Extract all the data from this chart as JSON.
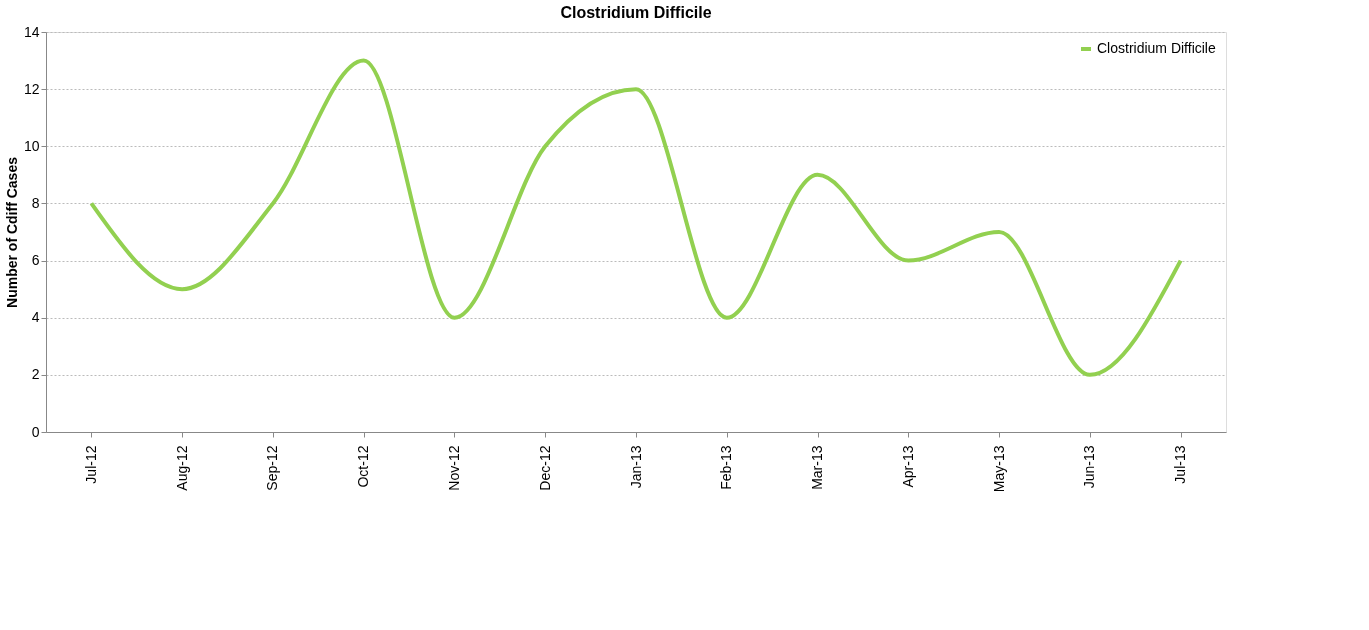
{
  "chart_data": {
    "type": "line",
    "title": "Clostridium Difficile",
    "ylabel": "Number of Cdiff Cases",
    "categories": [
      "Jul-12",
      "Aug-12",
      "Sep-12",
      "Oct-12",
      "Nov-12",
      "Dec-12",
      "Jan-13",
      "Feb-13",
      "Mar-13",
      "Apr-13",
      "May-13",
      "Jun-13",
      "Jul-13"
    ],
    "series": [
      {
        "name": "Clostridium Difficile",
        "color": "#92d050",
        "values": [
          8,
          5,
          8,
          13,
          4,
          10,
          12,
          4,
          9,
          6,
          7,
          2,
          6
        ]
      }
    ],
    "ylim": [
      0,
      14
    ],
    "yticks": [
      0,
      2,
      4,
      6,
      8,
      10,
      12,
      14
    ],
    "grid": "y",
    "legend": "top right",
    "marker": "none",
    "line_style": "solid"
  }
}
